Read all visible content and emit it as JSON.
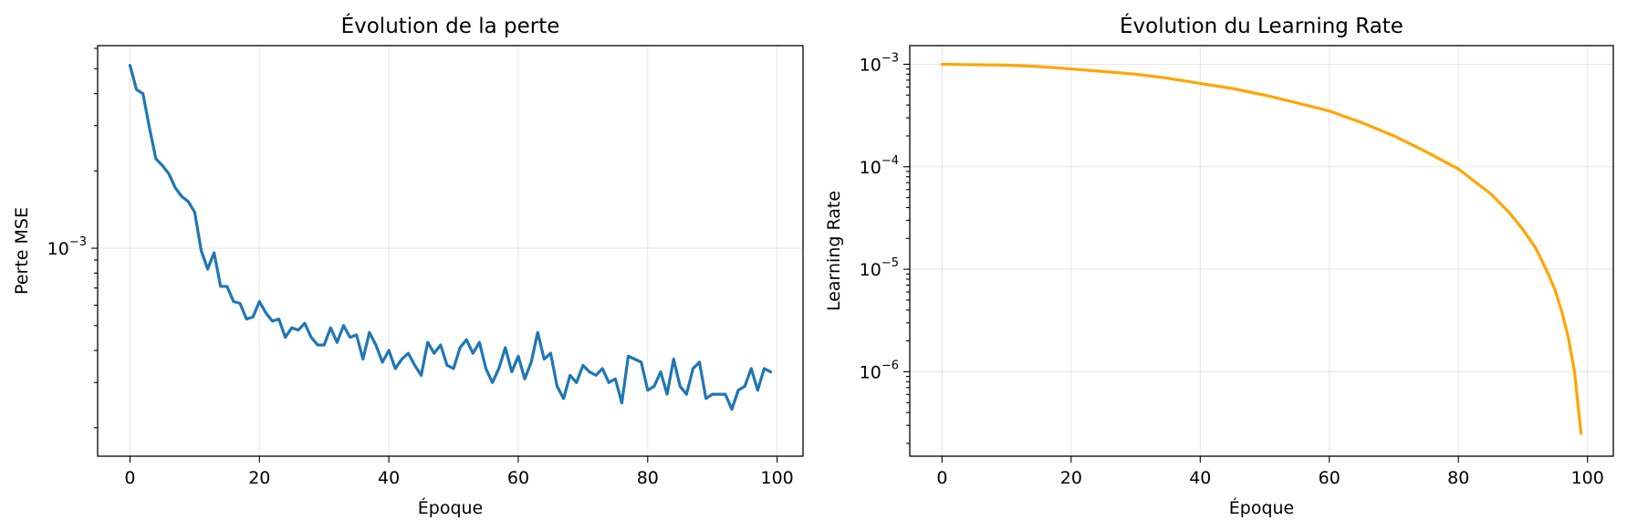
{
  "chart_data": [
    {
      "type": "line",
      "title": "Évolution de la perte",
      "xlabel": "Époque",
      "ylabel": "Perte MSE",
      "xlim": [
        -5,
        104
      ],
      "ylim": [
        0.000155,
        0.00615
      ],
      "yscale": "log",
      "grid": true,
      "x_ticks": [
        0,
        20,
        40,
        60,
        80,
        100
      ],
      "y_ticks": [
        {
          "base": "10",
          "exp": "−3",
          "value": 0.001
        }
      ],
      "series": [
        {
          "color": "#1f77b4",
          "x": [
            0,
            1,
            2,
            3,
            4,
            5,
            6,
            7,
            8,
            9,
            10,
            11,
            12,
            13,
            14,
            15,
            16,
            17,
            18,
            19,
            20,
            21,
            22,
            23,
            24,
            25,
            26,
            27,
            28,
            29,
            30,
            31,
            32,
            33,
            34,
            35,
            36,
            37,
            38,
            39,
            40,
            41,
            42,
            43,
            44,
            45,
            46,
            47,
            48,
            49,
            50,
            51,
            52,
            53,
            54,
            55,
            56,
            57,
            58,
            59,
            60,
            61,
            62,
            63,
            64,
            65,
            66,
            67,
            68,
            69,
            70,
            71,
            72,
            73,
            74,
            75,
            76,
            77,
            78,
            79,
            80,
            81,
            82,
            83,
            84,
            85,
            86,
            87,
            88,
            89,
            90,
            91,
            92,
            93,
            94,
            95,
            96,
            97,
            98,
            99
          ],
          "y": [
            0.00515,
            0.00415,
            0.004,
            0.00295,
            0.00223,
            0.0021,
            0.00195,
            0.00172,
            0.00159,
            0.00152,
            0.00138,
            0.00098,
            0.00083,
            0.00096,
            0.00071,
            0.00071,
            0.00062,
            0.00061,
            0.00053,
            0.00054,
            0.00062,
            0.00056,
            0.00052,
            0.00053,
            0.00045,
            0.00049,
            0.00048,
            0.00051,
            0.00045,
            0.00042,
            0.00042,
            0.00049,
            0.00043,
            0.0005,
            0.00045,
            0.00046,
            0.00037,
            0.00047,
            0.00042,
            0.00036,
            0.0004,
            0.00034,
            0.00037,
            0.00039,
            0.00035,
            0.00032,
            0.00043,
            0.00039,
            0.00042,
            0.00035,
            0.00034,
            0.00041,
            0.00044,
            0.00039,
            0.00043,
            0.00034,
            0.0003,
            0.00034,
            0.00041,
            0.00033,
            0.00038,
            0.00031,
            0.00036,
            0.00047,
            0.00037,
            0.00039,
            0.00029,
            0.00026,
            0.00032,
            0.0003,
            0.00035,
            0.00033,
            0.00032,
            0.00034,
            0.0003,
            0.00031,
            0.00025,
            0.00038,
            0.00037,
            0.00036,
            0.00028,
            0.00029,
            0.00033,
            0.00027,
            0.00037,
            0.00029,
            0.00027,
            0.00034,
            0.00036,
            0.00026,
            0.00027,
            0.00027,
            0.00027,
            0.000236,
            0.00028,
            0.00029,
            0.00034,
            0.00028,
            0.00034,
            0.00033
          ]
        }
      ]
    },
    {
      "type": "line",
      "title": "Évolution du Learning Rate",
      "xlabel": "Époque",
      "ylabel": "Learning Rate",
      "xlim": [
        -5,
        104
      ],
      "ylim": [
        1.5e-07,
        0.00152
      ],
      "yscale": "log",
      "grid": true,
      "x_ticks": [
        0,
        20,
        40,
        60,
        80,
        100
      ],
      "y_ticks": [
        {
          "base": "10",
          "exp": "−3",
          "value": 0.001
        },
        {
          "base": "10",
          "exp": "−4",
          "value": 0.0001
        },
        {
          "base": "10",
          "exp": "−5",
          "value": 1e-05
        },
        {
          "base": "10",
          "exp": "−6",
          "value": 1e-06
        }
      ],
      "series": [
        {
          "color": "#ffa500",
          "x": [
            0,
            5,
            10,
            15,
            20,
            25,
            30,
            35,
            40,
            45,
            50,
            55,
            60,
            65,
            70,
            75,
            80,
            85,
            88,
            90,
            92,
            94,
            95,
            96,
            97,
            98,
            99
          ],
          "y": [
            0.001,
            0.00099,
            0.00098,
            0.00095,
            0.0009,
            0.00085,
            0.0008,
            0.00073,
            0.00065,
            0.00058,
            0.0005,
            0.00042,
            0.00035,
            0.00027,
            0.0002,
            0.00014,
            9.51e-05,
            5.45e-05,
            3.5e-05,
            2.44e-05,
            1.6e-05,
            8.8e-06,
            6.2e-06,
            3.9e-06,
            2.2e-06,
            9.9e-07,
            2.5e-07
          ]
        }
      ]
    }
  ]
}
